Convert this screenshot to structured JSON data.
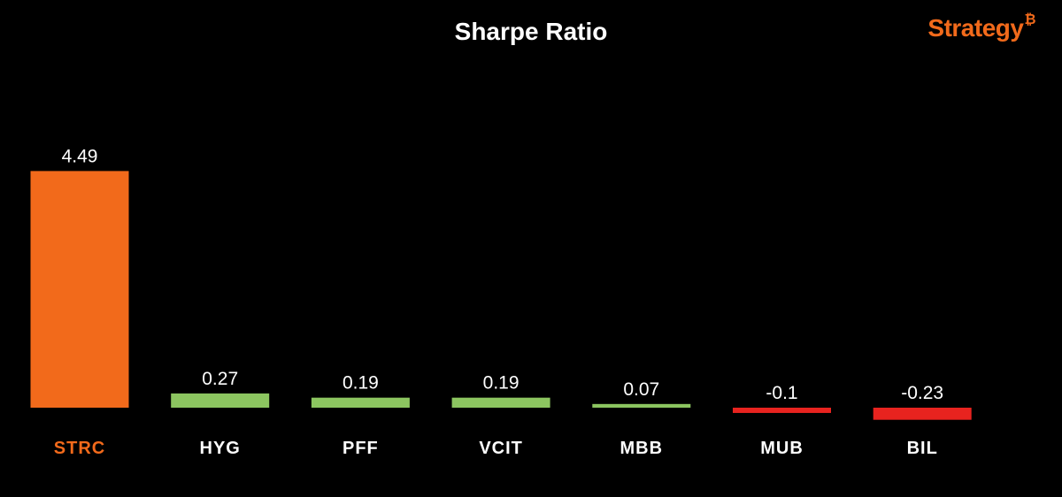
{
  "header": {
    "title": "Sharpe Ratio"
  },
  "logo": {
    "text": "Strategy",
    "symbol": "₿",
    "color": "#f26a1b"
  },
  "chart_data": {
    "type": "bar",
    "title": "Sharpe Ratio",
    "xlabel": "",
    "ylabel": "",
    "grid": false,
    "categories": [
      "STRC",
      "HYG",
      "PFF",
      "VCIT",
      "MBB",
      "MUB",
      "BIL"
    ],
    "values": [
      4.49,
      0.27,
      0.19,
      0.19,
      0.07,
      -0.1,
      -0.23
    ],
    "value_labels": [
      "4.49",
      "0.27",
      "0.19",
      "0.19",
      "0.07",
      "-0.1",
      "-0.23"
    ],
    "bar_colors": [
      "#f26a1b",
      "#8cc560",
      "#8cc560",
      "#8cc560",
      "#8cc560",
      "#e8231f",
      "#e8231f"
    ],
    "category_label_colors": [
      "#f26a1b",
      "#ffffff",
      "#ffffff",
      "#ffffff",
      "#ffffff",
      "#ffffff",
      "#ffffff"
    ]
  }
}
